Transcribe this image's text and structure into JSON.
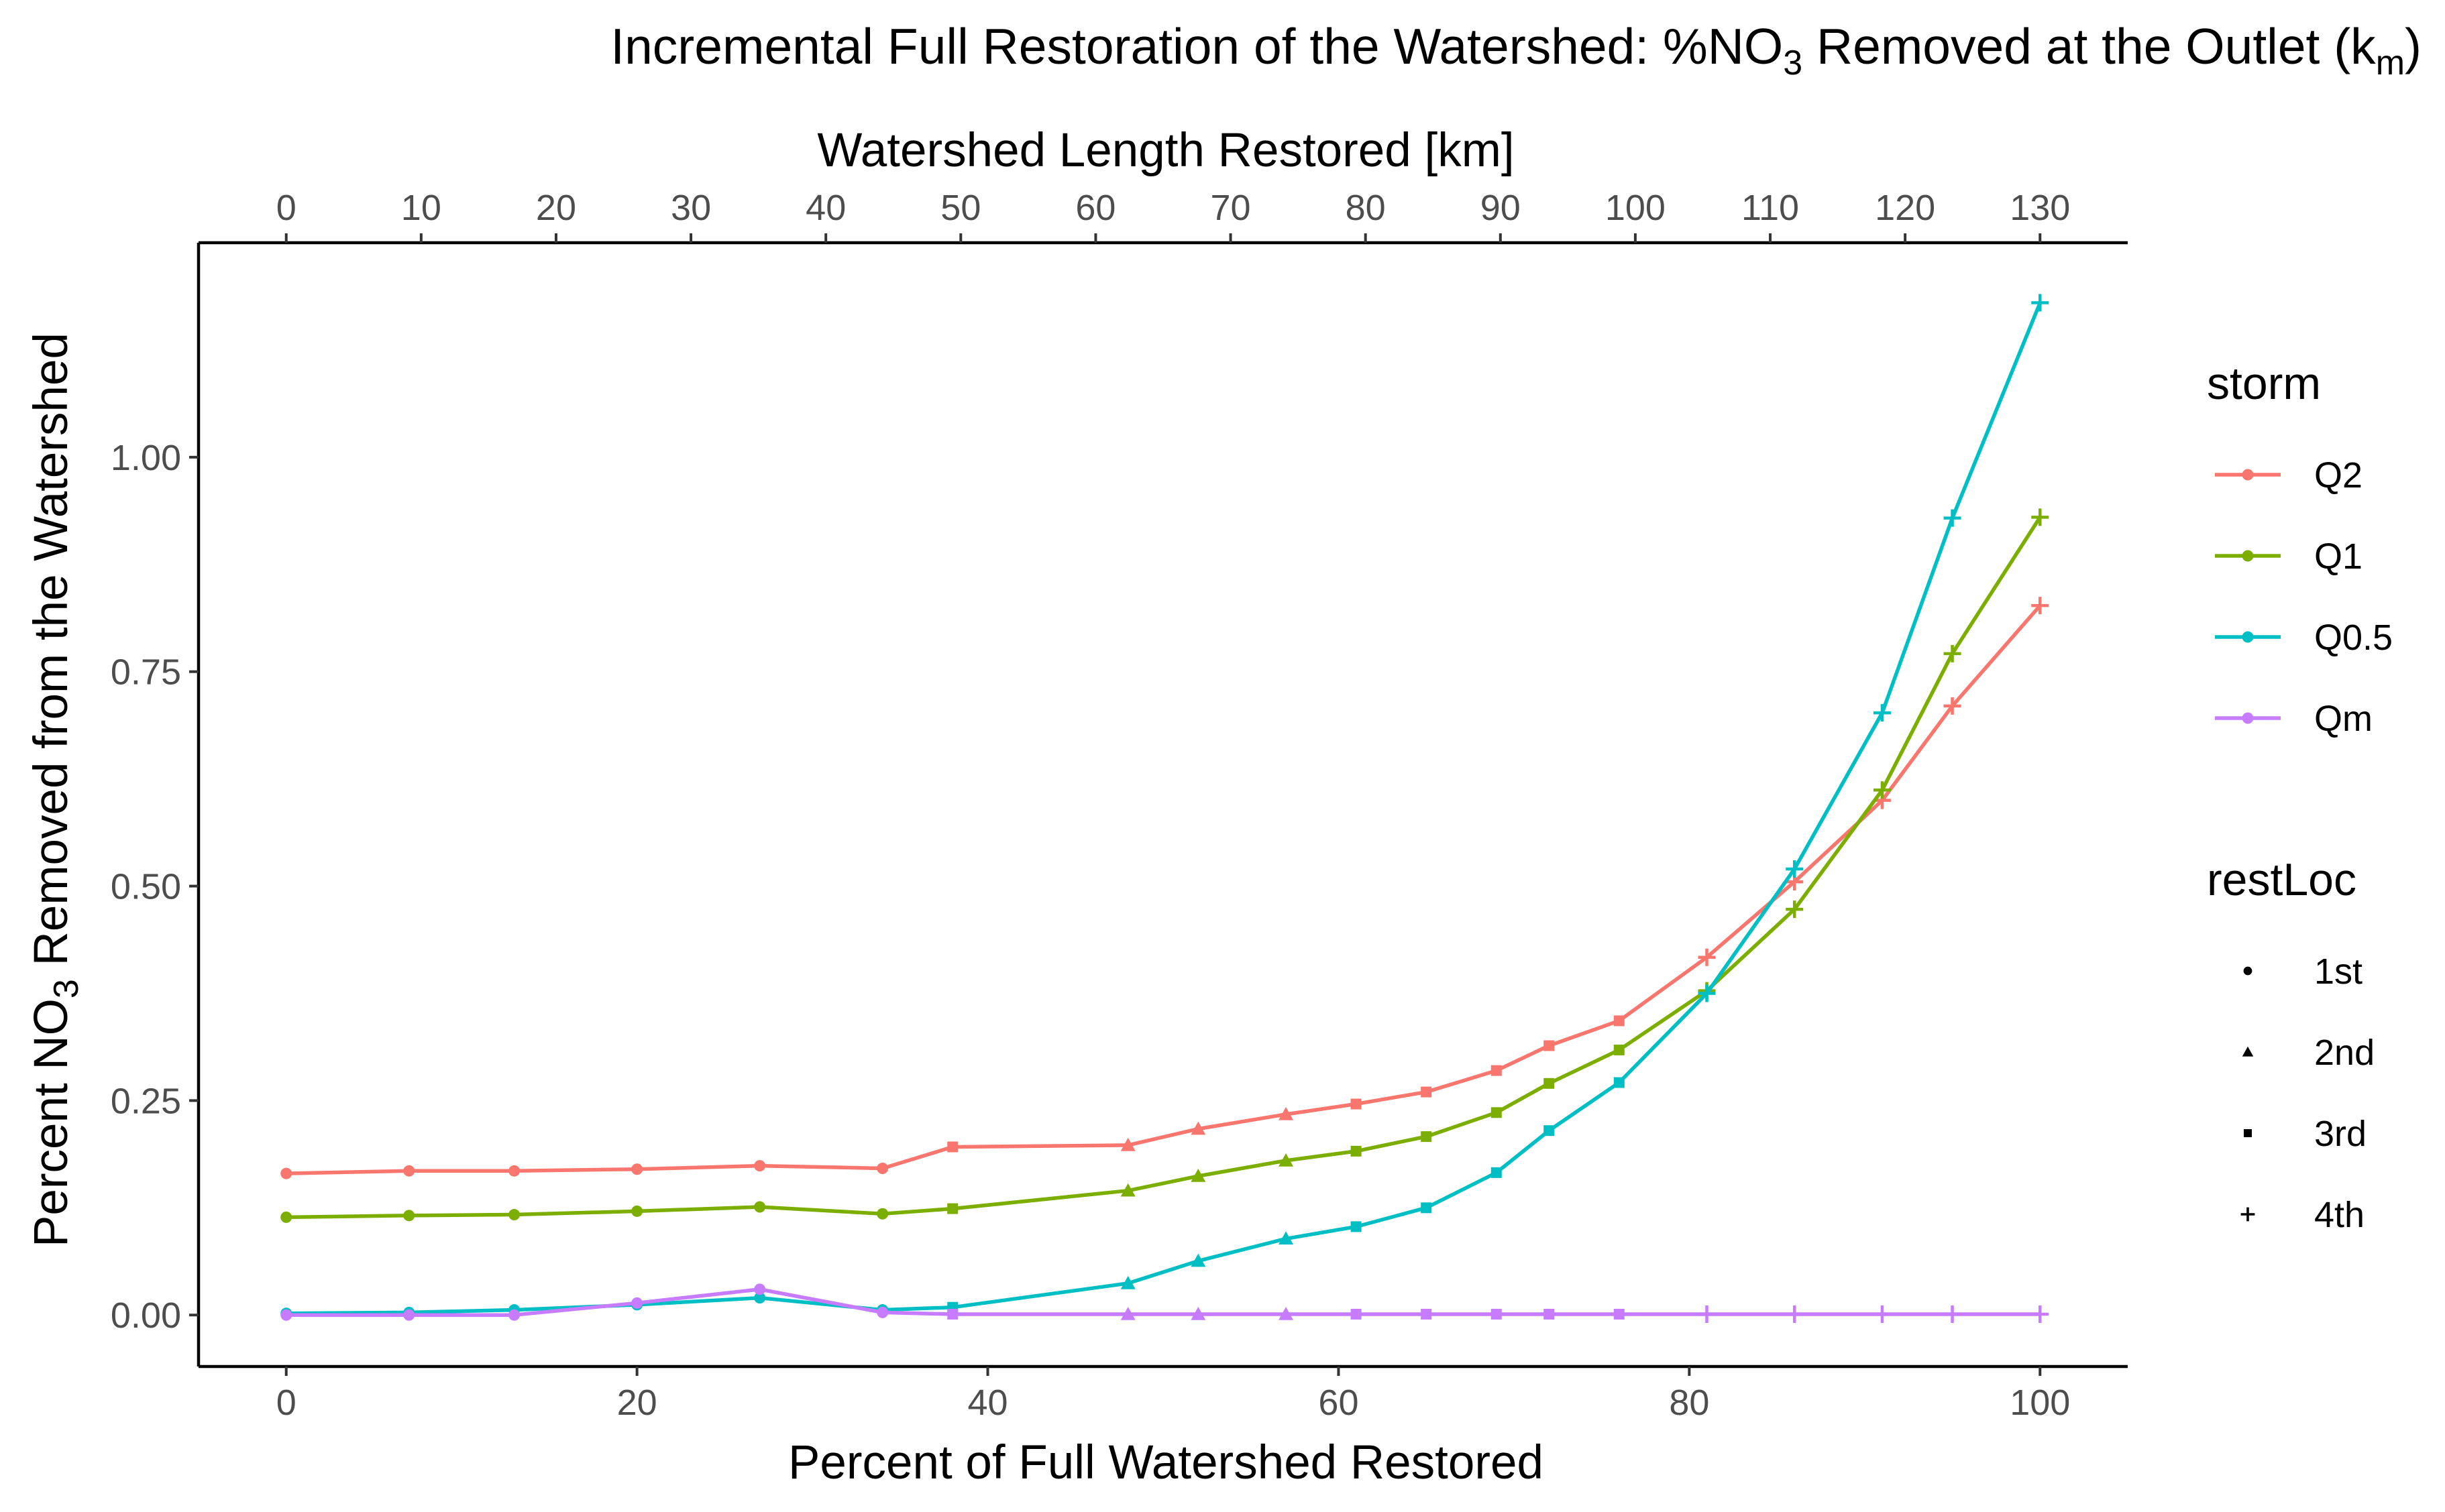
{
  "chart_data": {
    "type": "line",
    "title_parts": {
      "before": "Incremental Full Restoration of the Watershed: %NO",
      "sub1": "3",
      "middle": " Removed at the Outlet (k",
      "sub2": "m",
      "after": ")"
    },
    "xlabel": "Percent of Full Watershed Restored",
    "ylabel_parts": {
      "before": "Percent NO",
      "sub": "3",
      "after": " Removed from the Watershed"
    },
    "x2label": "Watershed Length Restored [km]",
    "xlim": [
      -5,
      105
    ],
    "ylim": [
      -0.06,
      1.25
    ],
    "x_ticks": [
      0,
      20,
      40,
      60,
      80,
      100
    ],
    "x_tick_labels": [
      "0",
      "20",
      "40",
      "60",
      "80",
      "100"
    ],
    "y_ticks": [
      0,
      0.25,
      0.5,
      0.75,
      1.0
    ],
    "y_tick_labels": [
      "0.00",
      "0.25",
      "0.50",
      "0.75",
      "1.00"
    ],
    "x2_ticks": [
      0,
      10,
      20,
      30,
      40,
      50,
      60,
      70,
      80,
      90,
      100,
      110,
      120,
      130
    ],
    "x2_tick_labels": [
      "0",
      "10",
      "20",
      "30",
      "40",
      "50",
      "60",
      "70",
      "80",
      "90",
      "100",
      "110",
      "120",
      "130"
    ],
    "x": [
      0,
      7,
      13,
      20,
      27,
      34,
      38,
      48,
      52,
      57,
      61,
      65,
      69,
      72,
      76,
      81,
      86,
      91,
      95,
      100
    ],
    "restLoc_by_point": [
      "1st",
      "1st",
      "1st",
      "1st",
      "1st",
      "1st",
      "3rd",
      "2nd",
      "2nd",
      "2nd",
      "3rd",
      "3rd",
      "3rd",
      "3rd",
      "3rd",
      "4th",
      "4th",
      "4th",
      "4th",
      "4th"
    ],
    "series": [
      {
        "name": "Q2",
        "color": "#F8766D",
        "values": [
          0.165,
          0.168,
          0.168,
          0.17,
          0.174,
          0.171,
          0.196,
          0.198,
          0.217,
          0.234,
          0.246,
          0.26,
          0.285,
          0.314,
          0.343,
          0.417,
          0.505,
          0.6,
          0.71,
          0.827
        ]
      },
      {
        "name": "Q1",
        "color": "#7CAE00",
        "values": [
          0.114,
          0.116,
          0.117,
          0.121,
          0.126,
          0.118,
          0.124,
          0.145,
          0.162,
          0.18,
          0.191,
          0.208,
          0.236,
          0.27,
          0.309,
          0.378,
          0.473,
          0.612,
          0.771,
          0.93
        ]
      },
      {
        "name": "Q0.5",
        "color": "#00BFC4",
        "values": [
          0.002,
          0.003,
          0.006,
          0.012,
          0.02,
          0.006,
          0.009,
          0.037,
          0.063,
          0.089,
          0.103,
          0.125,
          0.166,
          0.215,
          0.271,
          0.375,
          0.52,
          0.702,
          0.929,
          1.18
        ]
      },
      {
        "name": "Qm",
        "color": "#C77CFF",
        "values": [
          0.0,
          0.0,
          0.0,
          0.014,
          0.03,
          0.003,
          0.001,
          0.001,
          0.001,
          0.001,
          0.001,
          0.001,
          0.001,
          0.001,
          0.001,
          0.001,
          0.001,
          0.001,
          0.001,
          0.001
        ]
      }
    ],
    "legend": {
      "placement": "right",
      "storm_title": "storm",
      "storm_items": [
        {
          "label": "Q2",
          "color": "#F8766D"
        },
        {
          "label": "Q1",
          "color": "#7CAE00"
        },
        {
          "label": "Q0.5",
          "color": "#00BFC4"
        },
        {
          "label": "Qm",
          "color": "#C77CFF"
        }
      ],
      "restloc_title": "restLoc",
      "restloc_items": [
        {
          "label": "1st",
          "shape": "circle"
        },
        {
          "label": "2nd",
          "shape": "triangle"
        },
        {
          "label": "3rd",
          "shape": "square"
        },
        {
          "label": "4th",
          "shape": "plus"
        }
      ]
    },
    "grid": false
  }
}
